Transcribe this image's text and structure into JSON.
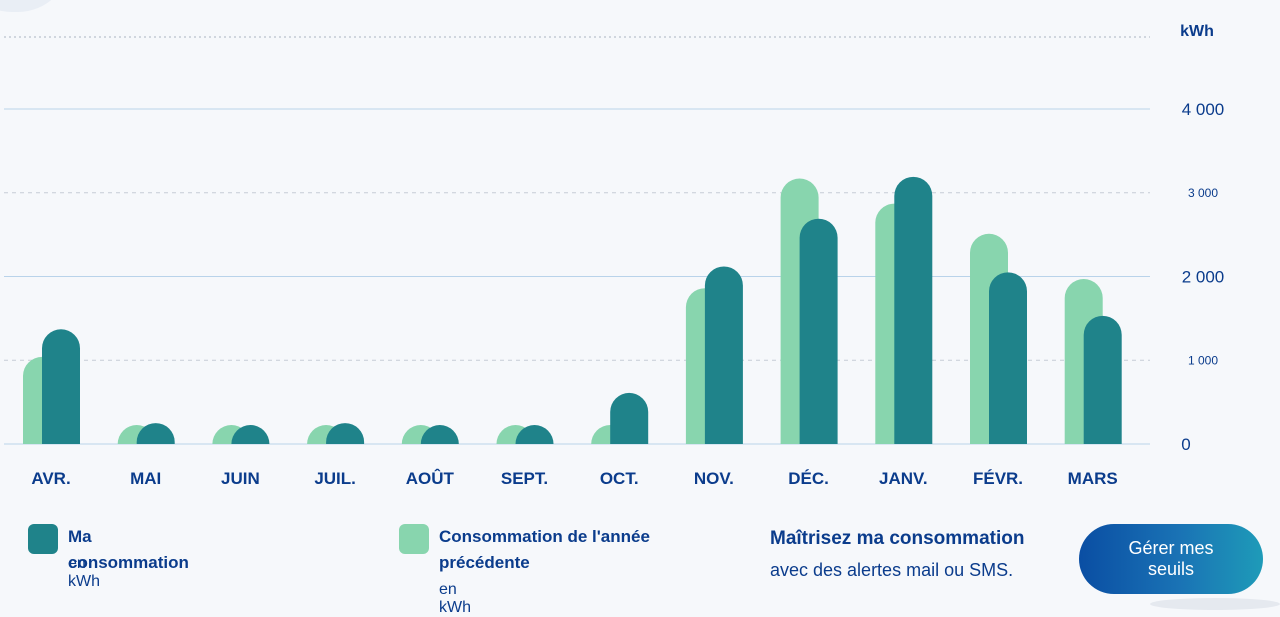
{
  "chart_data": {
    "type": "bar",
    "unit_label": "kWh",
    "categories": [
      "AVR.",
      "MAI",
      "JUIN",
      "JUIL.",
      "AOÛT",
      "SEPT.",
      "OCT.",
      "NOV.",
      "DÉC.",
      "JANV.",
      "FÉVR.",
      "MARS"
    ],
    "series": [
      {
        "name": "Consommation de l'année précédente",
        "color": "#88d5ae",
        "values": [
          1040,
          130,
          210,
          220,
          180,
          190,
          210,
          1860,
          3170,
          2870,
          2510,
          1970
        ]
      },
      {
        "name": "Ma consommation",
        "color": "#1f838a",
        "values": [
          1370,
          250,
          210,
          250,
          180,
          180,
          610,
          2120,
          2690,
          3190,
          2050,
          1530
        ]
      }
    ],
    "ylim": [
      0,
      4000
    ],
    "ticks": [
      {
        "value": 4000,
        "label": "4 000",
        "style": "major"
      },
      {
        "value": 3000,
        "label": "3 000",
        "style": "minor"
      },
      {
        "value": 2000,
        "label": "2 000",
        "style": "major"
      },
      {
        "value": 1000,
        "label": "1 000",
        "style": "minor"
      },
      {
        "value": 0,
        "label": "0",
        "style": "axis"
      }
    ],
    "grid": true,
    "legend_placement": "bottom-left"
  },
  "legend": [
    {
      "label": "Ma consommation",
      "unit": "en kWh",
      "color": "#1f838a"
    },
    {
      "label": "Consommation de l'année précédente",
      "unit": "en kWh",
      "color": "#88d5ae"
    }
  ],
  "promo": {
    "title": "Maîtrisez ma consommation",
    "subtitle": "avec des alertes mail ou SMS."
  },
  "manage_button": {
    "label": "Gérer mes seuils"
  }
}
